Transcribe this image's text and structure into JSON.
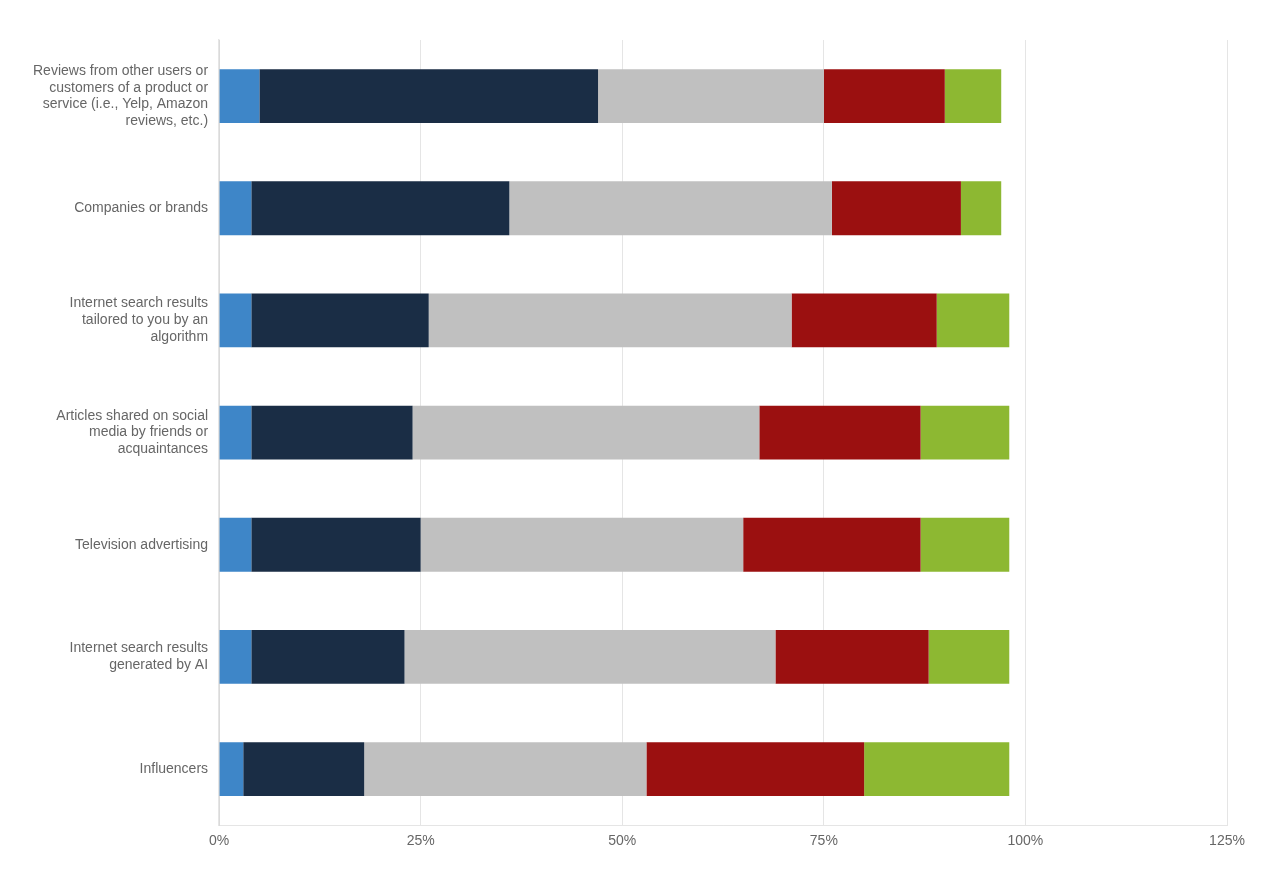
{
  "chart_data": {
    "type": "bar",
    "orientation": "horizontal",
    "stacked": true,
    "categories": [
      "Reviews from other users or\ncustomers of a product or\nservice (i.e., Yelp, Amazon\nreviews, etc.)",
      "Companies or brands",
      "Internet search results\ntailored to you by an\nalgorithm",
      "Articles shared on social\nmedia by friends or\nacquaintances",
      "Television advertising",
      "Internet search results\ngenerated by AI",
      "Influencers"
    ],
    "series": [
      {
        "color": "#3e86c8",
        "values": [
          5,
          4,
          4,
          4,
          4,
          4,
          3
        ]
      },
      {
        "color": "#1a2d45",
        "values": [
          42,
          32,
          22,
          20,
          21,
          19,
          15
        ]
      },
      {
        "color": "#c0c0c0",
        "values": [
          28,
          40,
          45,
          43,
          40,
          46,
          35
        ]
      },
      {
        "color": "#9b1010",
        "values": [
          15,
          16,
          18,
          20,
          22,
          19,
          27
        ]
      },
      {
        "color": "#8db832",
        "values": [
          7,
          5,
          9,
          11,
          11,
          10,
          18
        ]
      }
    ],
    "xlim": [
      0,
      125
    ],
    "xticks": [
      {
        "value": 0,
        "label": "0%"
      },
      {
        "value": 25,
        "label": "25%"
      },
      {
        "value": 50,
        "label": "50%"
      },
      {
        "value": 75,
        "label": "75%"
      },
      {
        "value": 100,
        "label": "100%"
      },
      {
        "value": 125,
        "label": "125%"
      }
    ],
    "grid": true
  }
}
